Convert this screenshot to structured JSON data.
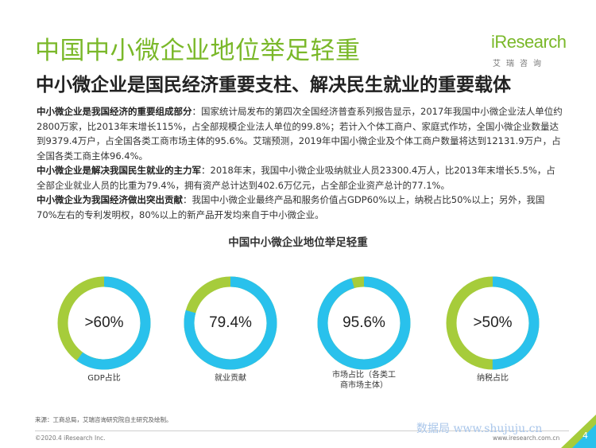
{
  "header": {
    "title": "中国中小微企业地位举足轻重",
    "subtitle": "中小微企业是国民经济重要支柱、解决民生就业的重要载体"
  },
  "logo": {
    "word": "iResearch",
    "sub": "艾瑞咨询"
  },
  "paragraphs": [
    {
      "bold": "中小微企业是我国经济的重要组成部分",
      "text": "：国家统计局发布的第四次全国经济普查系列报告显示，2017年我国中小微企业法人单位约2800万家，比2013年末增长115%，占全部规模企业法人单位的99.8%；若计入个体工商户、家庭式作坊，全国小微企业数量达到9379.4万户，占全国各类工商市场主体的95.6%。艾瑞预测，2019年中国小微企业及个体工商户数量将达到12131.9万户，占全国各类工商主体96.4%。"
    },
    {
      "bold": "中小微企业是解决我国民生就业的主力军",
      "text": "：2018年末，我国中小微企业吸纳就业人员23300.4万人，比2013年末增长5.5%，占全部企业就业人员的比重为79.4%，拥有资产总计达到402.6万亿元，占全部企业资产总计的77.1%。"
    },
    {
      "bold": "中小微企业为我国经济做出突出贡献",
      "text": "：我国中小微企业最终产品和服务价值占GDP60%以上，纳税占比50%以上；另外，我国70%左右的专利发明权，80%以上的新产品开发均来自于中小微企业。"
    }
  ],
  "chart_title": "中国中小微企业地位举足轻重",
  "chart_data": {
    "type": "pie",
    "items": [
      {
        "value_label": ">60%",
        "value": 60,
        "label": "GDP占比"
      },
      {
        "value_label": "79.4%",
        "value": 79.4,
        "label": "就业贡献"
      },
      {
        "value_label": "95.6%",
        "value": 95.6,
        "label": "市场占比（各类工商市场主体）"
      },
      {
        "value_label": ">50%",
        "value": 50,
        "label": "纳税占比"
      }
    ],
    "colors": {
      "share": "#29c1ec",
      "rest": "#a6cc3b"
    }
  },
  "footer": {
    "source": "来源：工商总局，艾瑞咨询研究院自主研究及绘制。",
    "copyright": "©2020.4 iResearch Inc.",
    "website": "www.iresearch.com.cn",
    "watermark": "数据局 www.shujuju.cn",
    "page": "4"
  }
}
